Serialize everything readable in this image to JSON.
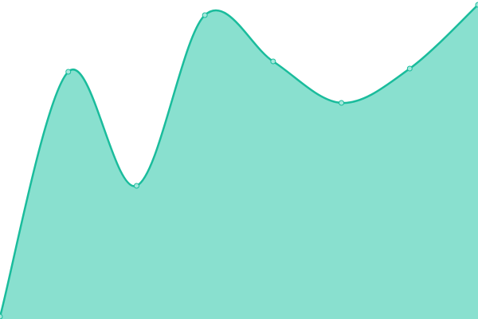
{
  "chart_data": {
    "type": "area",
    "x": [
      0,
      1,
      2,
      3,
      4,
      5,
      6,
      7
    ],
    "values": [
      3,
      310,
      167,
      381,
      323,
      271,
      314,
      394
    ],
    "ylim": [
      0,
      400
    ],
    "xlim": [
      0,
      7
    ],
    "grid": false,
    "axes_visible": false,
    "legend": "none",
    "curve": "smooth",
    "colors": {
      "line": "#1abc9c",
      "fill": "#89e0cf",
      "point_fill": "#a6e8dc",
      "point_stroke": "#1abc9c"
    }
  }
}
